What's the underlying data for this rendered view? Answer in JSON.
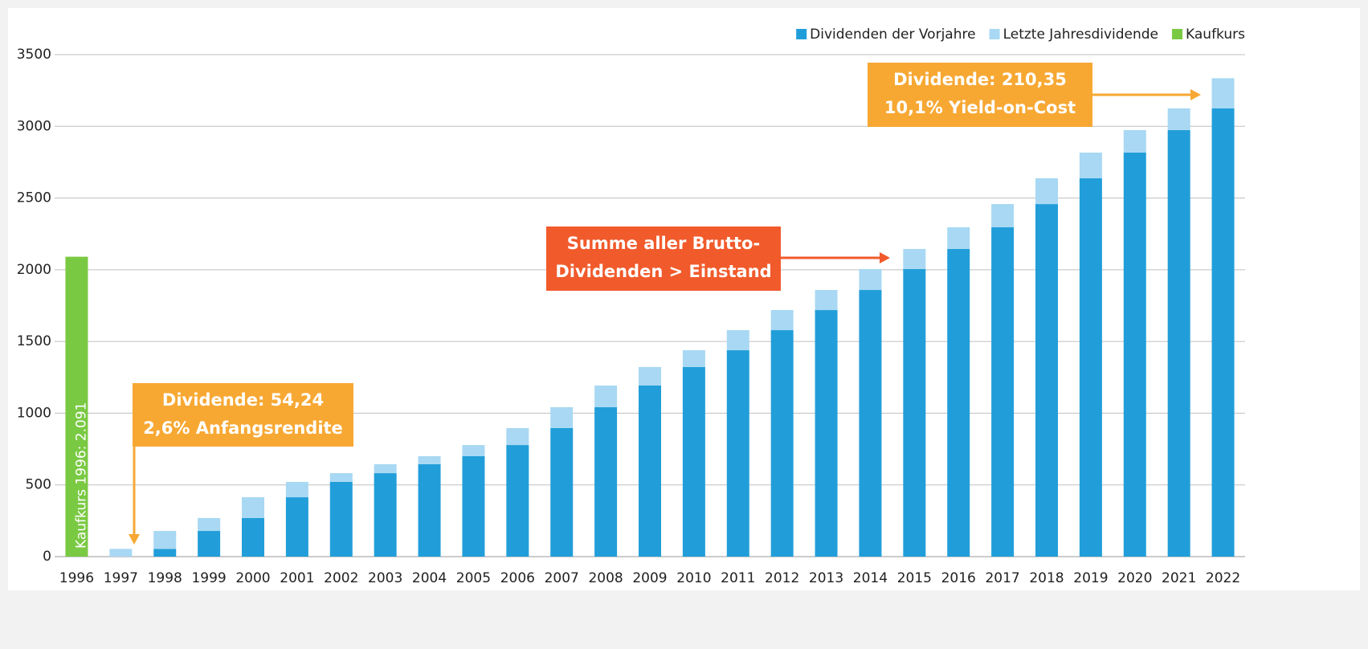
{
  "chart_data": {
    "type": "bar",
    "stacked": true,
    "categories": [
      "1996",
      "1997",
      "1998",
      "1999",
      "2000",
      "2001",
      "2002",
      "2003",
      "2004",
      "2005",
      "2006",
      "2007",
      "2008",
      "2009",
      "2010",
      "2011",
      "2012",
      "2013",
      "2014",
      "2015",
      "2016",
      "2017",
      "2018",
      "2019",
      "2020",
      "2021",
      "2022"
    ],
    "series": [
      {
        "name": "Dividenden der Vorjahre",
        "color": "#219ed9",
        "values": [
          null,
          0,
          54,
          179,
          269,
          414,
          521,
          582,
          644,
          700,
          778,
          896,
          1042,
          1193,
          1322,
          1439,
          1579,
          1719,
          1859,
          2005,
          2145,
          2296,
          2458,
          2638,
          2817,
          2974,
          3125
        ]
      },
      {
        "name": "Letzte Jahresdividende",
        "color": "#a8d8f3",
        "values": [
          null,
          54.24,
          125,
          90,
          145,
          107,
          61,
          62,
          56,
          78,
          118,
          146,
          151,
          129,
          117,
          140,
          140,
          140,
          146,
          140,
          151,
          162,
          180,
          179,
          157,
          151,
          210.35
        ]
      },
      {
        "name": "Kaufkurs",
        "color": "#7ac943",
        "values": [
          2091,
          null,
          null,
          null,
          null,
          null,
          null,
          null,
          null,
          null,
          null,
          null,
          null,
          null,
          null,
          null,
          null,
          null,
          null,
          null,
          null,
          null,
          null,
          null,
          null,
          null,
          null
        ],
        "value_labels": [
          "Kaufkurs 1996: 2.091",
          null,
          null,
          null,
          null,
          null,
          null,
          null,
          null,
          null,
          null,
          null,
          null,
          null,
          null,
          null,
          null,
          null,
          null,
          null,
          null,
          null,
          null,
          null,
          null,
          null,
          null
        ]
      }
    ],
    "ylim": [
      0,
      3500
    ],
    "yticks": [
      0,
      500,
      1000,
      1500,
      2000,
      2500,
      3000,
      3500
    ],
    "grid": true,
    "legend": "top-right",
    "annotations": [
      {
        "lines": [
          "Dividende: 54,24",
          "2,6% Anfangsrendite"
        ],
        "color": "#f7a833"
      },
      {
        "lines": [
          "Summe aller Brutto-",
          "Dividenden > Einstand"
        ],
        "color": "#f15a2b"
      },
      {
        "lines": [
          "Dividende: 210,35",
          "10,1% Yield-on-Cost"
        ],
        "color": "#f7a833"
      }
    ]
  }
}
